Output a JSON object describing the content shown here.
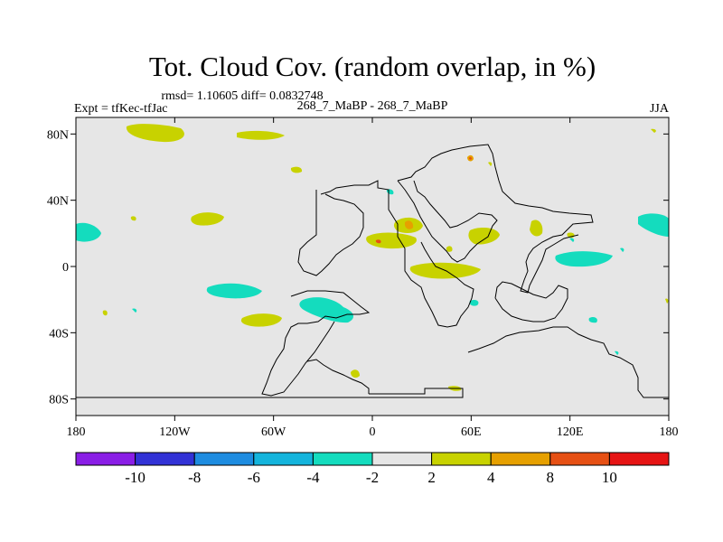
{
  "title": "Tot. Cloud Cov. (random overlap, in %)",
  "stats": "rmsd= 1.10605 diff= 0.0832748",
  "experiment": "Expt = tfKec-tfJac",
  "run_label": "268_7_MaBP - 268_7_MaBP",
  "season": "JJA",
  "x_ticks": [
    "180",
    "120W",
    "60W",
    "0",
    "60E",
    "120E",
    "180"
  ],
  "y_ticks": [
    "80N",
    "40N",
    "0",
    "40S",
    "80S"
  ],
  "colorbar": {
    "colors": [
      "#8a1ee6",
      "#3232d6",
      "#1e8ce0",
      "#14b4dc",
      "#14dcbe",
      "#e6e6e6",
      "#c8d200",
      "#e6a000",
      "#e65014",
      "#e61414"
    ],
    "labels": [
      "-10",
      "-8",
      "-6",
      "-4",
      "-2",
      "2",
      "4",
      "8",
      "10"
    ]
  },
  "colors": {
    "background": "#e6e6e6",
    "yellow": "#c8d200",
    "cyan": "#14dcbe",
    "orange": "#e6a000",
    "red": "#e65014"
  }
}
